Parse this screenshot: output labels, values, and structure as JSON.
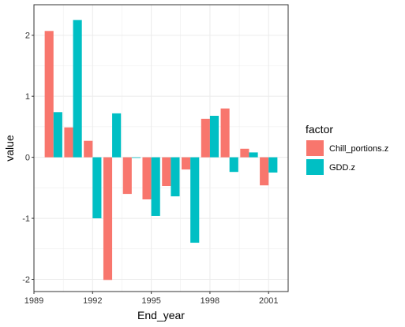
{
  "chart_data": {
    "type": "bar",
    "xlabel": "End_year",
    "ylabel": "value",
    "x_ticks": [
      "1989",
      "1992",
      "1995",
      "1998",
      "2001"
    ],
    "x_tick_values": [
      1989,
      1992,
      1995,
      1998,
      2001
    ],
    "y_ticks": [
      "-2",
      "-1",
      "0",
      "1",
      "2"
    ],
    "y_tick_values": [
      -2,
      -1,
      0,
      1,
      2
    ],
    "xlim": [
      1989,
      2002
    ],
    "ylim": [
      -2.2,
      2.5
    ],
    "grid": true,
    "legend": {
      "title": "factor",
      "placement": "right"
    },
    "x": [
      1990,
      1991,
      1992,
      1993,
      1994,
      1995,
      1996,
      1997,
      1998,
      1999,
      2000,
      2001
    ],
    "series": [
      {
        "name": "Chill_portions.z",
        "color": "#F8766D",
        "values": [
          2.07,
          0.49,
          0.27,
          -2.01,
          -0.6,
          -0.69,
          -0.47,
          -0.2,
          0.63,
          0.8,
          0.14,
          -0.46
        ]
      },
      {
        "name": "GDD.z",
        "color": "#00BFC4",
        "values": [
          0.74,
          2.25,
          -1.0,
          0.72,
          -0.01,
          -0.96,
          -0.64,
          -1.4,
          0.68,
          -0.24,
          0.08,
          -0.25
        ]
      }
    ]
  }
}
